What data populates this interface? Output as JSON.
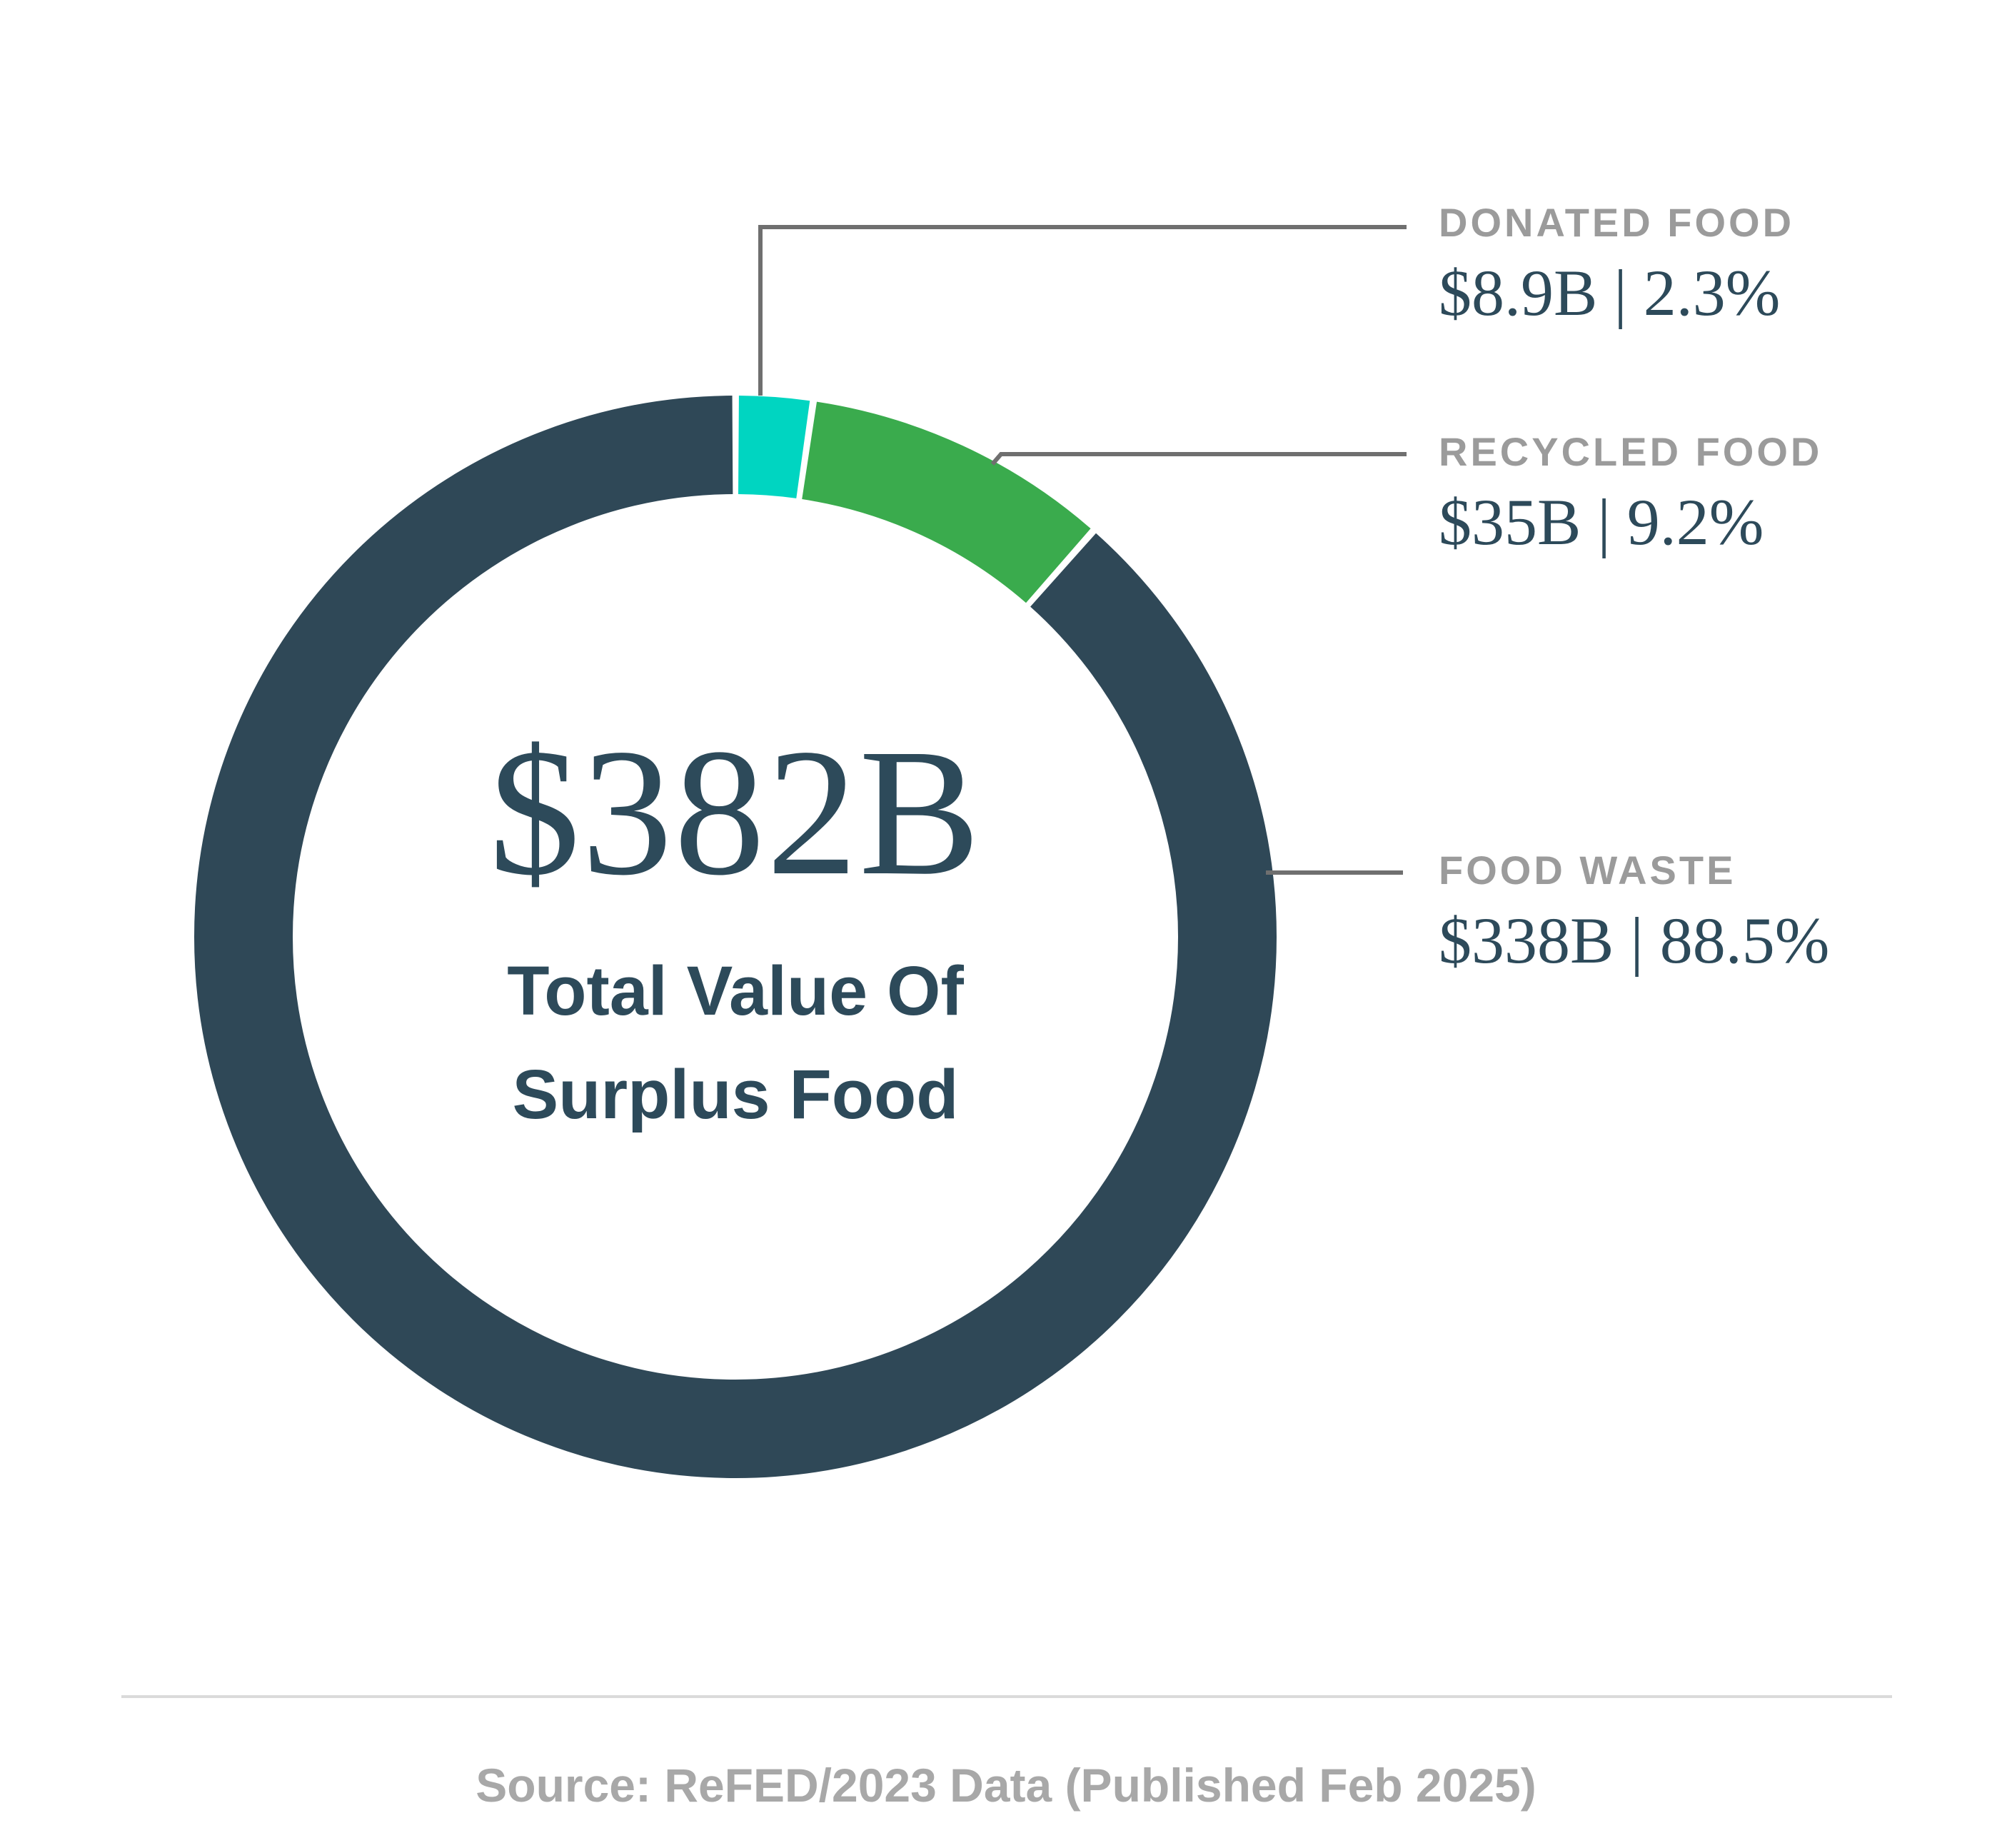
{
  "chart_data": {
    "type": "pie",
    "subtype": "donut",
    "direction": "clockwise",
    "start_angle_deg": 0,
    "legend_position": "right-callouts",
    "center_label": {
      "value": "$382B",
      "subtitle_line1": "Total Value Of",
      "subtitle_line2": "Surplus Food"
    },
    "segments": [
      {
        "label": "DONATED FOOD",
        "value_billions": 8.9,
        "value_label": "$8.9B",
        "percent": 2.3,
        "percent_label": "2.3%",
        "display": "$8.9B | 2.3%",
        "color": "#00D5C1"
      },
      {
        "label": "RECYCLED FOOD",
        "value_billions": 35,
        "value_label": "$35B",
        "percent": 9.2,
        "percent_label": "9.2%",
        "display": "$35B | 9.2%",
        "color": "#3AAB4D"
      },
      {
        "label": "FOOD WASTE",
        "value_billions": 338,
        "value_label": "$338B",
        "percent": 88.5,
        "percent_label": "88.5%",
        "display": "$338B | 88.5%",
        "color": "#2F4857"
      }
    ],
    "total": {
      "value_billions": 382,
      "label": "$382B",
      "description": "Total Value Of Surplus Food"
    }
  },
  "colors": {
    "donated": "#00D5C1",
    "recycled": "#3AAB4D",
    "food_waste": "#2F4857",
    "category_label": "#9B9B9B",
    "value_text": "#2D4A5A",
    "leader_line": "#6F6F6F",
    "divider": "#DADADA",
    "footer_text": "#A8A8A8"
  },
  "footer": {
    "source": "Source: ReFED/2023 Data (Published Feb 2025)"
  }
}
